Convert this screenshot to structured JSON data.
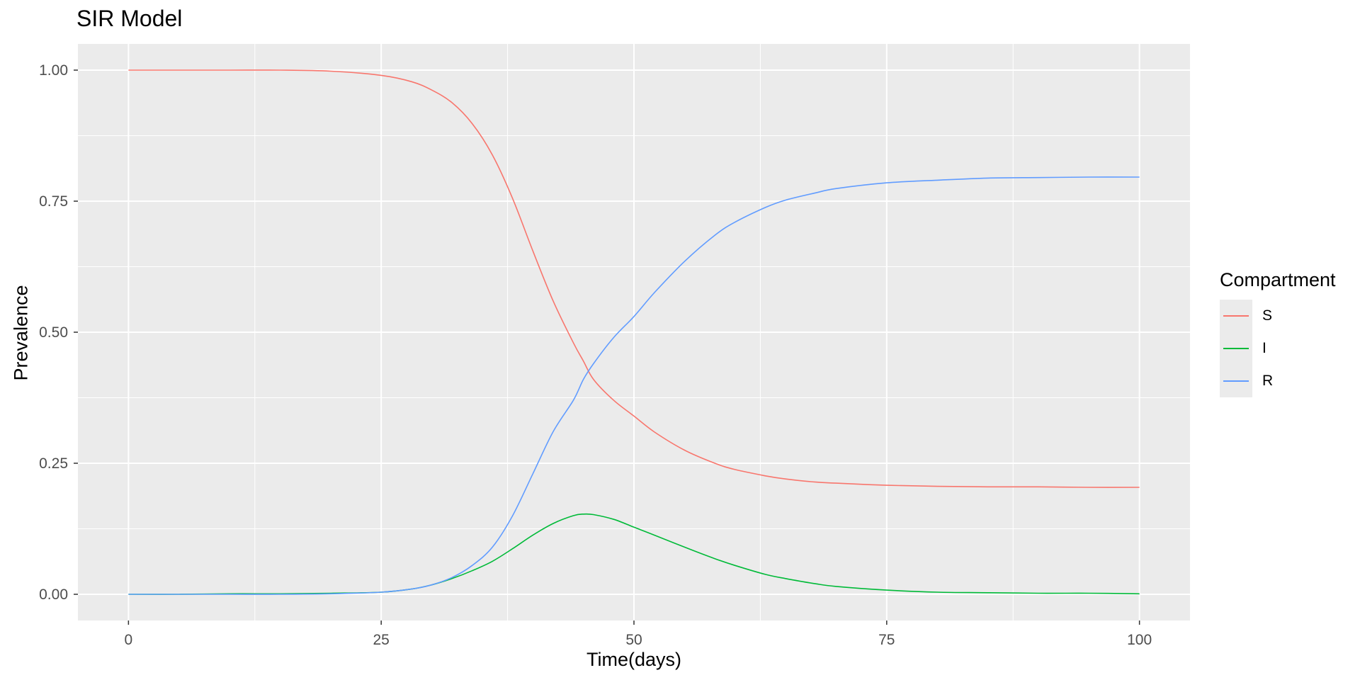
{
  "chart_data": {
    "type": "line",
    "title": "SIR Model",
    "xlabel": "Time(days)",
    "ylabel": "Prevalence",
    "xlim": [
      0,
      100
    ],
    "ylim": [
      0,
      1
    ],
    "x_ticks": [
      "0",
      "25",
      "50",
      "75",
      "100"
    ],
    "y_ticks": [
      "0.00",
      "0.25",
      "0.50",
      "0.75",
      "1.00"
    ],
    "grid": true,
    "legend": {
      "title": "Compartment",
      "position": "right"
    },
    "x": [
      0,
      5,
      10,
      15,
      20,
      25,
      28,
      30,
      32,
      34,
      36,
      38,
      40,
      42,
      44,
      45,
      46,
      48,
      50,
      52,
      55,
      58,
      60,
      63,
      65,
      68,
      70,
      75,
      80,
      85,
      90,
      95,
      100
    ],
    "series": [
      {
        "name": "S",
        "color": "#F8766D",
        "values": [
          1.0,
          1.0,
          1.0,
          1.0,
          0.998,
          0.99,
          0.978,
          0.962,
          0.938,
          0.898,
          0.838,
          0.755,
          0.655,
          0.56,
          0.48,
          0.445,
          0.41,
          0.37,
          0.34,
          0.31,
          0.275,
          0.25,
          0.238,
          0.226,
          0.22,
          0.214,
          0.212,
          0.208,
          0.206,
          0.205,
          0.205,
          0.204,
          0.204
        ]
      },
      {
        "name": "I",
        "color": "#00BA38",
        "values": [
          0.0,
          0.0,
          0.001,
          0.001,
          0.002,
          0.004,
          0.01,
          0.018,
          0.03,
          0.045,
          0.063,
          0.087,
          0.113,
          0.135,
          0.15,
          0.153,
          0.152,
          0.143,
          0.128,
          0.113,
          0.09,
          0.068,
          0.055,
          0.038,
          0.03,
          0.02,
          0.015,
          0.008,
          0.004,
          0.003,
          0.002,
          0.002,
          0.001
        ]
      },
      {
        "name": "R",
        "color": "#619CFF",
        "values": [
          0.0,
          0.0,
          0.0,
          0.0,
          0.001,
          0.004,
          0.01,
          0.018,
          0.032,
          0.055,
          0.09,
          0.15,
          0.23,
          0.31,
          0.37,
          0.41,
          0.44,
          0.49,
          0.53,
          0.575,
          0.635,
          0.685,
          0.71,
          0.738,
          0.752,
          0.766,
          0.774,
          0.785,
          0.79,
          0.794,
          0.795,
          0.796,
          0.796
        ]
      }
    ]
  }
}
